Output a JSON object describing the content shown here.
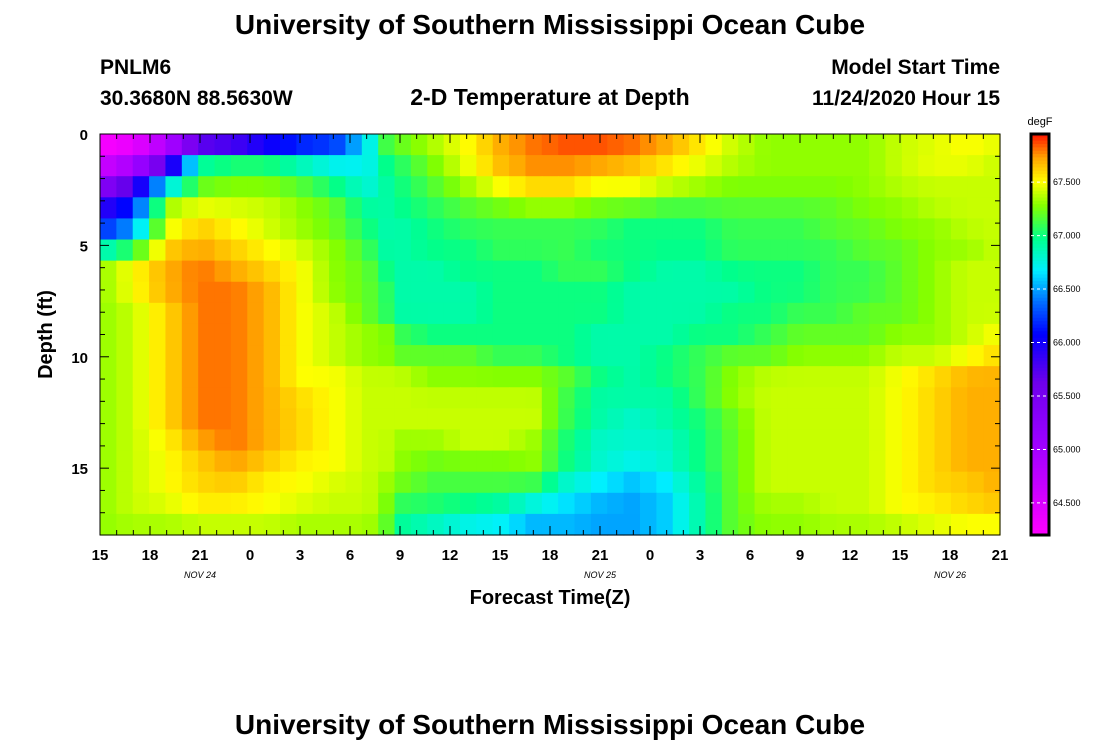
{
  "header": {
    "title": "University of Southern Mississippi Ocean Cube",
    "station_id": "PNLM6",
    "coords": "30.3680N 88.5630W",
    "plot_title": "2-D Temperature at Depth",
    "model_start_label": "Model Start Time",
    "model_start_value": "11/24/2020 Hour 15",
    "footer_title": "University of Southern Mississippi Ocean Cube"
  },
  "chart_data": {
    "type": "heatmap",
    "title": "2-D Temperature at Depth",
    "xlabel": "Forecast Time(Z)",
    "ylabel": "Depth (ft)",
    "x_tick_labels": [
      "15",
      "18",
      "21",
      "0",
      "3",
      "6",
      "9",
      "12",
      "15",
      "18",
      "21",
      "0",
      "3",
      "6",
      "9",
      "12",
      "15",
      "18",
      "21"
    ],
    "date_labels": [
      {
        "text": "NOV  24",
        "tick_index": 2
      },
      {
        "text": "NOV  25",
        "tick_index": 10
      },
      {
        "text": "NOV  26",
        "tick_index": 17
      }
    ],
    "y_ticks": [
      0,
      5,
      10,
      15
    ],
    "ylim": [
      0,
      18
    ],
    "x_range_hours": [
      0,
      54
    ],
    "colorbar": {
      "units": "degF",
      "min": 64.2,
      "max": 67.95,
      "tick_labels": [
        "67.500",
        "67.000",
        "66.500",
        "66.000",
        "65.500",
        "65.000",
        "64.500"
      ]
    },
    "grid": {
      "columns": 55,
      "depths_ft": [
        0,
        1,
        2,
        3,
        4,
        5,
        6,
        7,
        8,
        9,
        10,
        11,
        12,
        13,
        14,
        15,
        16,
        17,
        18
      ],
      "times_h": [
        0,
        2,
        4,
        6,
        8,
        10,
        12,
        14,
        16,
        17,
        18,
        20,
        22,
        24,
        26,
        28,
        30,
        32,
        34,
        36,
        38,
        40,
        42,
        44,
        46,
        48,
        50,
        52,
        54
      ],
      "values_degF": [
        [
          64.2,
          64.3,
          64.5,
          64.7,
          64.8,
          65.2,
          65.7,
          65.9,
          66.6,
          67.2,
          67.3,
          67.4,
          67.5,
          67.7,
          67.8,
          67.9,
          67.9,
          67.9,
          67.8,
          67.6,
          67.4,
          67.3,
          67.3,
          67.3,
          67.3,
          67.4,
          67.4,
          67.5,
          67.5
        ],
        [
          64.3,
          64.5,
          65.3,
          66.8,
          66.9,
          66.9,
          66.7,
          66.6,
          66.7,
          67.0,
          67.1,
          67.3,
          67.5,
          67.7,
          67.8,
          67.8,
          67.8,
          67.7,
          67.6,
          67.5,
          67.4,
          67.3,
          67.3,
          67.3,
          67.3,
          67.4,
          67.5,
          67.5,
          67.4
        ],
        [
          65.0,
          65.6,
          66.3,
          67.1,
          67.2,
          67.2,
          67.1,
          66.9,
          66.7,
          66.9,
          67.0,
          67.2,
          67.4,
          67.6,
          67.7,
          67.7,
          67.6,
          67.6,
          67.5,
          67.4,
          67.3,
          67.3,
          67.3,
          67.3,
          67.3,
          67.4,
          67.4,
          67.4,
          67.4
        ],
        [
          65.8,
          66.1,
          67.3,
          67.4,
          67.4,
          67.4,
          67.3,
          67.2,
          66.9,
          66.9,
          67.0,
          67.1,
          67.2,
          67.3,
          67.4,
          67.4,
          67.3,
          67.3,
          67.2,
          67.2,
          67.2,
          67.2,
          67.2,
          67.2,
          67.3,
          67.3,
          67.4,
          67.4,
          67.4
        ],
        [
          66.0,
          66.3,
          67.4,
          67.6,
          67.5,
          67.4,
          67.3,
          67.2,
          67.0,
          66.9,
          66.9,
          67.0,
          67.1,
          67.1,
          67.1,
          67.1,
          67.1,
          67.0,
          67.0,
          67.0,
          67.1,
          67.1,
          67.1,
          67.2,
          67.2,
          67.3,
          67.3,
          67.4,
          67.4
        ],
        [
          66.7,
          67.0,
          67.6,
          67.7,
          67.6,
          67.5,
          67.4,
          67.3,
          67.1,
          66.9,
          66.9,
          67.0,
          67.0,
          67.1,
          67.1,
          67.1,
          67.0,
          67.0,
          67.0,
          67.0,
          67.1,
          67.1,
          67.1,
          67.1,
          67.2,
          67.2,
          67.3,
          67.3,
          67.4
        ],
        [
          67.3,
          67.5,
          67.7,
          67.8,
          67.7,
          67.6,
          67.5,
          67.3,
          67.2,
          67.0,
          66.9,
          66.9,
          67.0,
          67.0,
          67.0,
          67.1,
          67.1,
          67.0,
          66.9,
          66.9,
          67.0,
          67.0,
          67.0,
          67.1,
          67.1,
          67.2,
          67.3,
          67.4,
          67.4
        ],
        [
          67.3,
          67.5,
          67.7,
          67.8,
          67.8,
          67.7,
          67.5,
          67.3,
          67.2,
          67.1,
          66.9,
          66.9,
          66.9,
          67.0,
          67.0,
          67.0,
          67.0,
          66.9,
          66.9,
          66.9,
          66.9,
          67.0,
          67.0,
          67.1,
          67.1,
          67.2,
          67.3,
          67.4,
          67.4
        ],
        [
          67.3,
          67.4,
          67.6,
          67.8,
          67.8,
          67.7,
          67.5,
          67.4,
          67.2,
          67.1,
          66.9,
          66.9,
          66.9,
          67.0,
          67.0,
          67.0,
          67.0,
          66.9,
          66.9,
          66.9,
          67.0,
          67.0,
          67.1,
          67.1,
          67.2,
          67.2,
          67.3,
          67.4,
          67.4
        ],
        [
          67.3,
          67.4,
          67.6,
          67.8,
          67.8,
          67.7,
          67.5,
          67.4,
          67.3,
          67.3,
          67.1,
          67.0,
          67.0,
          67.0,
          67.0,
          67.0,
          66.9,
          66.9,
          66.9,
          67.0,
          67.0,
          67.1,
          67.2,
          67.2,
          67.2,
          67.3,
          67.3,
          67.4,
          67.5
        ],
        [
          67.3,
          67.4,
          67.6,
          67.8,
          67.8,
          67.7,
          67.5,
          67.4,
          67.3,
          67.3,
          67.2,
          67.2,
          67.2,
          67.1,
          67.1,
          67.0,
          66.9,
          66.9,
          67.0,
          67.1,
          67.2,
          67.2,
          67.3,
          67.3,
          67.3,
          67.4,
          67.4,
          67.5,
          67.6
        ],
        [
          67.3,
          67.4,
          67.6,
          67.8,
          67.8,
          67.7,
          67.5,
          67.5,
          67.4,
          67.4,
          67.4,
          67.3,
          67.3,
          67.3,
          67.3,
          67.2,
          67.0,
          66.9,
          67.0,
          67.1,
          67.3,
          67.4,
          67.4,
          67.4,
          67.4,
          67.5,
          67.6,
          67.7,
          67.7
        ],
        [
          67.3,
          67.4,
          67.6,
          67.8,
          67.8,
          67.7,
          67.6,
          67.5,
          67.4,
          67.4,
          67.4,
          67.4,
          67.4,
          67.4,
          67.4,
          67.1,
          66.9,
          66.9,
          66.9,
          67.1,
          67.3,
          67.4,
          67.4,
          67.4,
          67.4,
          67.5,
          67.6,
          67.7,
          67.7
        ],
        [
          67.3,
          67.4,
          67.6,
          67.8,
          67.8,
          67.7,
          67.6,
          67.5,
          67.4,
          67.4,
          67.4,
          67.4,
          67.4,
          67.4,
          67.4,
          67.1,
          66.9,
          66.8,
          66.9,
          67.0,
          67.2,
          67.4,
          67.4,
          67.4,
          67.4,
          67.5,
          67.6,
          67.7,
          67.7
        ],
        [
          67.3,
          67.4,
          67.5,
          67.7,
          67.8,
          67.7,
          67.6,
          67.5,
          67.4,
          67.4,
          67.3,
          67.3,
          67.4,
          67.4,
          67.3,
          67.0,
          66.8,
          66.8,
          66.8,
          67.0,
          67.2,
          67.4,
          67.4,
          67.4,
          67.4,
          67.5,
          67.6,
          67.7,
          67.7
        ],
        [
          67.3,
          67.4,
          67.5,
          67.6,
          67.7,
          67.6,
          67.5,
          67.5,
          67.4,
          67.4,
          67.3,
          67.2,
          67.2,
          67.2,
          67.3,
          67.0,
          66.8,
          66.7,
          66.8,
          67.0,
          67.2,
          67.4,
          67.4,
          67.4,
          67.4,
          67.5,
          67.6,
          67.7,
          67.7
        ],
        [
          67.3,
          67.4,
          67.5,
          67.6,
          67.6,
          67.5,
          67.5,
          67.4,
          67.4,
          67.3,
          67.2,
          67.1,
          67.1,
          67.1,
          67.0,
          66.7,
          66.6,
          66.5,
          66.6,
          66.9,
          67.2,
          67.4,
          67.4,
          67.4,
          67.4,
          67.5,
          67.6,
          67.6,
          67.7
        ],
        [
          67.3,
          67.4,
          67.4,
          67.5,
          67.5,
          67.5,
          67.4,
          67.4,
          67.4,
          67.3,
          67.0,
          67.0,
          66.9,
          66.8,
          66.6,
          66.6,
          66.5,
          66.5,
          66.6,
          66.9,
          67.2,
          67.3,
          67.3,
          67.4,
          67.4,
          67.5,
          67.5,
          67.6,
          67.6
        ],
        [
          67.3,
          67.3,
          67.3,
          67.3,
          67.3,
          67.3,
          67.3,
          67.3,
          67.3,
          67.2,
          66.9,
          66.7,
          66.6,
          66.6,
          66.5,
          66.5,
          66.5,
          66.5,
          66.6,
          66.9,
          67.2,
          67.3,
          67.3,
          67.3,
          67.3,
          67.3,
          67.4,
          67.4,
          67.4
        ]
      ]
    }
  }
}
